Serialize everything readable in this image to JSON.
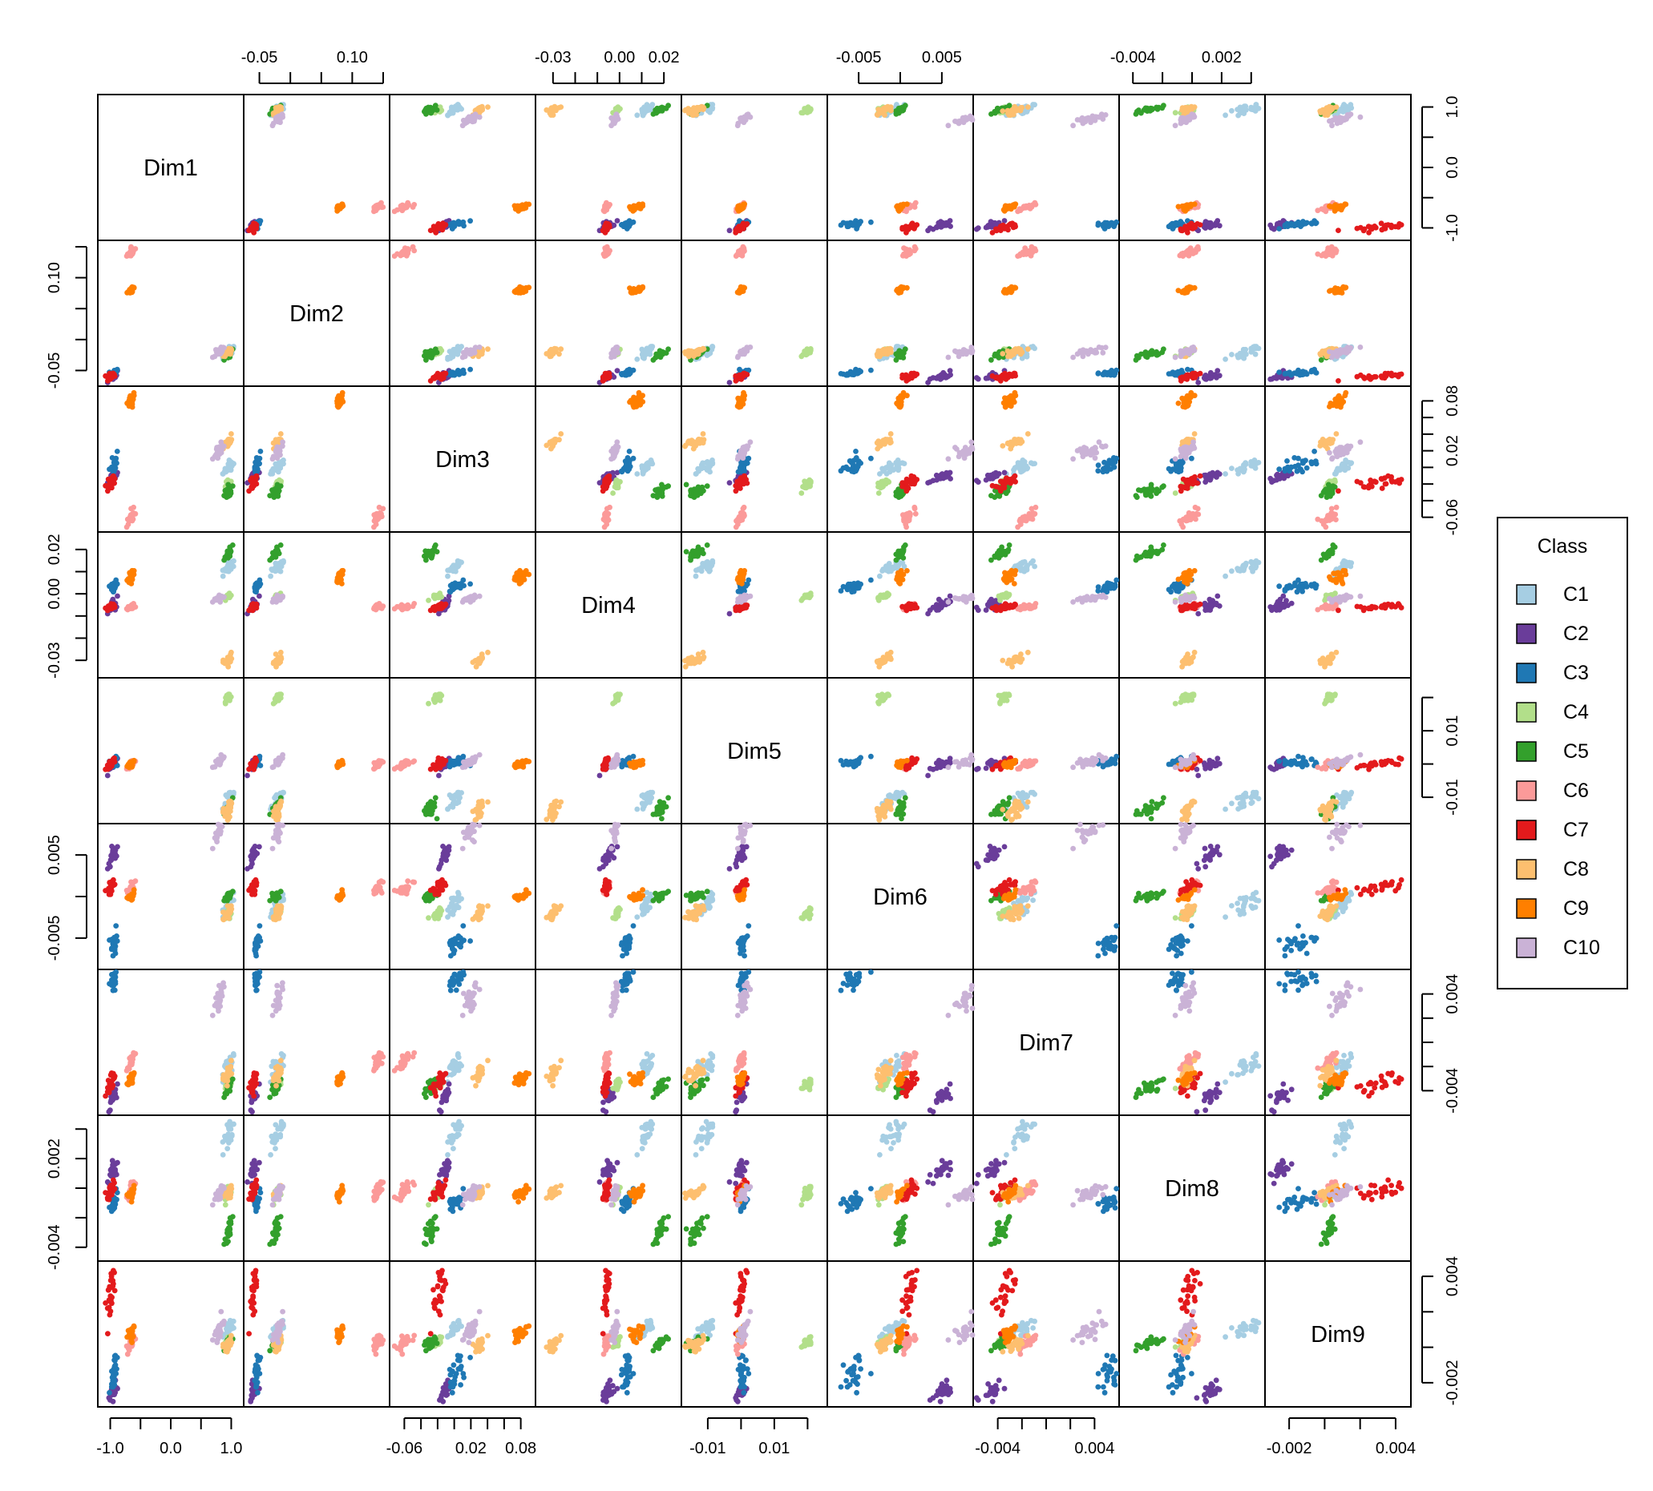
{
  "chart_data": {
    "type": "scatter",
    "subtype": "scatterplot-matrix",
    "title": "",
    "variables": [
      "Dim1",
      "Dim2",
      "Dim3",
      "Dim4",
      "Dim5",
      "Dim6",
      "Dim7",
      "Dim8",
      "Dim9"
    ],
    "axes": [
      {
        "name": "Dim1",
        "range": [
          -1.1,
          1.1
        ],
        "ticks": [
          -1.0,
          -0.5,
          0.0,
          0.5,
          1.0
        ],
        "tick_labels": [
          "-1.0",
          "0.0",
          "1.0"
        ],
        "label_side": "x-bottom, y-right"
      },
      {
        "name": "Dim2",
        "range": [
          -0.065,
          0.15
        ],
        "ticks": [
          -0.05,
          0.0,
          0.05,
          0.1,
          0.15
        ],
        "tick_labels": [
          "-0.05",
          "0.10"
        ],
        "label_side": "x-top, y-left"
      },
      {
        "name": "Dim3",
        "range": [
          -0.07,
          0.09
        ],
        "ticks": [
          -0.06,
          -0.04,
          -0.02,
          0.0,
          0.02,
          0.04,
          0.06,
          0.08
        ],
        "tick_labels": [
          "-0.06",
          "0.02",
          "0.08"
        ],
        "label_side": "x-bottom, y-right"
      },
      {
        "name": "Dim4",
        "range": [
          -0.035,
          0.025
        ],
        "ticks": [
          -0.03,
          -0.02,
          -0.01,
          0.0,
          0.01,
          0.02
        ],
        "tick_labels": [
          "-0.03",
          "0.00",
          "0.02"
        ],
        "label_side": "x-top, y-left"
      },
      {
        "name": "Dim5",
        "range": [
          -0.016,
          0.024
        ],
        "ticks": [
          -0.01,
          0.0,
          0.01,
          0.02
        ],
        "tick_labels": [
          "-0.01",
          "0.01"
        ],
        "label_side": "x-bottom, y-right"
      },
      {
        "name": "Dim6",
        "range": [
          -0.008,
          0.008
        ],
        "ticks": [
          -0.005,
          0.0,
          0.005
        ],
        "tick_labels": [
          "-0.005",
          "0.005"
        ],
        "label_side": "x-top, y-left"
      },
      {
        "name": "Dim7",
        "range": [
          -0.0055,
          0.0055
        ],
        "ticks": [
          -0.004,
          -0.002,
          0.0,
          0.002,
          0.004
        ],
        "tick_labels": [
          "-0.004",
          "0.004"
        ],
        "label_side": "x-bottom, y-right"
      },
      {
        "name": "Dim8",
        "range": [
          -0.0045,
          0.0045
        ],
        "ticks": [
          -0.004,
          -0.002,
          0.0,
          0.002,
          0.004
        ],
        "tick_labels": [
          "-0.004",
          "0.002"
        ],
        "label_side": "x-top, y-left"
      },
      {
        "name": "Dim9",
        "range": [
          -0.003,
          0.0045
        ],
        "ticks": [
          -0.002,
          0.0,
          0.002,
          0.004
        ],
        "tick_labels": [
          "-0.002",
          "0.004"
        ],
        "label_side": "x-bottom, y-right"
      }
    ],
    "x_axis_labels_bottom": [
      {
        "var": 0,
        "labels": [
          {
            "v": -1.0,
            "t": "-1.0"
          },
          {
            "v": 0.0,
            "t": "0.0"
          },
          {
            "v": 1.0,
            "t": "1.0"
          }
        ]
      },
      {
        "var": 2,
        "labels": [
          {
            "v": -0.06,
            "t": "-0.06"
          },
          {
            "v": 0.02,
            "t": "0.02"
          },
          {
            "v": 0.08,
            "t": "0.08"
          }
        ]
      },
      {
        "var": 4,
        "labels": [
          {
            "v": -0.01,
            "t": "-0.01"
          },
          {
            "v": 0.01,
            "t": "0.01"
          }
        ]
      },
      {
        "var": 6,
        "labels": [
          {
            "v": -0.004,
            "t": "-0.004"
          },
          {
            "v": 0.004,
            "t": "0.004"
          }
        ]
      },
      {
        "var": 8,
        "labels": [
          {
            "v": -0.002,
            "t": "-0.002"
          },
          {
            "v": 0.004,
            "t": "0.004"
          }
        ]
      }
    ],
    "x_axis_labels_top": [
      {
        "var": 1,
        "labels": [
          {
            "v": -0.05,
            "t": "-0.05"
          },
          {
            "v": 0.1,
            "t": "0.10"
          }
        ]
      },
      {
        "var": 3,
        "labels": [
          {
            "v": -0.03,
            "t": "-0.03"
          },
          {
            "v": 0.0,
            "t": "0.00"
          },
          {
            "v": 0.02,
            "t": "0.02"
          }
        ]
      },
      {
        "var": 5,
        "labels": [
          {
            "v": -0.005,
            "t": "-0.005"
          },
          {
            "v": 0.005,
            "t": "0.005"
          }
        ]
      },
      {
        "var": 7,
        "labels": [
          {
            "v": -0.004,
            "t": "-0.004"
          },
          {
            "v": 0.002,
            "t": "0.002"
          }
        ]
      }
    ],
    "y_axis_labels_left": [
      {
        "var": 1,
        "labels": [
          {
            "v": -0.05,
            "t": "-0.05"
          },
          {
            "v": 0.1,
            "t": "0.10"
          }
        ]
      },
      {
        "var": 3,
        "labels": [
          {
            "v": -0.03,
            "t": "-0.03"
          },
          {
            "v": 0.0,
            "t": "0.00"
          },
          {
            "v": 0.02,
            "t": "0.02"
          }
        ]
      },
      {
        "var": 5,
        "labels": [
          {
            "v": -0.005,
            "t": "-0.005"
          },
          {
            "v": 0.005,
            "t": "0.005"
          }
        ]
      },
      {
        "var": 7,
        "labels": [
          {
            "v": -0.004,
            "t": "-0.004"
          },
          {
            "v": 0.002,
            "t": "0.002"
          }
        ]
      }
    ],
    "y_axis_labels_right": [
      {
        "var": 0,
        "labels": [
          {
            "v": -1.0,
            "t": "-1.0"
          },
          {
            "v": 0.0,
            "t": "0.0"
          },
          {
            "v": 1.0,
            "t": "1.0"
          }
        ]
      },
      {
        "var": 2,
        "labels": [
          {
            "v": -0.06,
            "t": "-0.06"
          },
          {
            "v": 0.02,
            "t": "0.02"
          },
          {
            "v": 0.08,
            "t": "0.08"
          }
        ]
      },
      {
        "var": 4,
        "labels": [
          {
            "v": -0.01,
            "t": "-0.01"
          },
          {
            "v": 0.01,
            "t": "0.01"
          }
        ]
      },
      {
        "var": 6,
        "labels": [
          {
            "v": -0.004,
            "t": "-0.004"
          },
          {
            "v": 0.004,
            "t": "0.004"
          }
        ]
      },
      {
        "var": 8,
        "labels": [
          {
            "v": -0.002,
            "t": "-0.002"
          },
          {
            "v": 0.004,
            "t": "0.004"
          }
        ]
      }
    ],
    "legend": {
      "title": "Class",
      "position": "right",
      "entries": [
        {
          "name": "C1",
          "color": "#A6CEE3"
        },
        {
          "name": "C2",
          "color": "#6A3D9A"
        },
        {
          "name": "C3",
          "color": "#1F78B4"
        },
        {
          "name": "C4",
          "color": "#B2DF8A"
        },
        {
          "name": "C5",
          "color": "#33A02C"
        },
        {
          "name": "C6",
          "color": "#FB9A99"
        },
        {
          "name": "C7",
          "color": "#E31A1C"
        },
        {
          "name": "C8",
          "color": "#FDBF6F"
        },
        {
          "name": "C9",
          "color": "#FF7F00"
        },
        {
          "name": "C10",
          "color": "#CAB2D6"
        }
      ]
    },
    "class_centroids": {
      "C1": [
        0.95,
        -0.02,
        0.0,
        0.012,
        -0.011,
        -0.001,
        -0.002,
        0.0035,
        0.001
      ],
      "C2": [
        -0.95,
        -0.06,
        -0.01,
        -0.005,
        0.0,
        0.005,
        -0.0045,
        0.0013,
        -0.0025
      ],
      "C3": [
        -0.95,
        -0.055,
        0.0,
        0.003,
        0.0,
        -0.006,
        0.005,
        -0.001,
        -0.0015
      ],
      "C4": [
        0.95,
        -0.02,
        -0.02,
        -0.001,
        0.02,
        -0.002,
        -0.0035,
        -0.0003,
        0.0003
      ],
      "C5": [
        0.95,
        -0.025,
        -0.03,
        0.018,
        -0.014,
        0.0,
        -0.0038,
        -0.003,
        0.0002
      ],
      "C6": [
        -0.65,
        0.14,
        -0.06,
        -0.006,
        0.0,
        0.001,
        -0.0015,
        -0.0002,
        0.0003
      ],
      "C7": [
        -1.0,
        -0.06,
        -0.02,
        -0.006,
        0.0,
        0.001,
        -0.0035,
        -0.0002,
        0.003
      ],
      "C8": [
        0.95,
        -0.02,
        0.03,
        -0.03,
        -0.014,
        -0.002,
        -0.0025,
        -0.0003,
        0.0002
      ],
      "C9": [
        -0.65,
        0.08,
        0.08,
        0.008,
        0.0,
        0.0,
        -0.003,
        -0.0003,
        0.0008
      ],
      "C10": [
        0.8,
        -0.02,
        0.02,
        -0.002,
        0.001,
        0.008,
        0.0035,
        -0.0003,
        0.001
      ]
    },
    "class_spreads": {
      "C1": [
        0.05,
        0.006,
        0.006,
        0.002,
        0.002,
        0.0008,
        0.0006,
        0.0008,
        0.0003
      ],
      "C2": [
        0.05,
        0.004,
        0.004,
        0.002,
        0.001,
        0.0008,
        0.0006,
        0.0004,
        0.0004
      ],
      "C3": [
        0.04,
        0.004,
        0.008,
        0.002,
        0.001,
        0.0014,
        0.0008,
        0.0004,
        0.0008
      ],
      "C4": [
        0.03,
        0.004,
        0.004,
        0.001,
        0.001,
        0.0004,
        0.0003,
        0.0003,
        0.0002
      ],
      "C5": [
        0.04,
        0.004,
        0.006,
        0.002,
        0.002,
        0.0004,
        0.0004,
        0.0006,
        0.0002
      ],
      "C6": [
        0.04,
        0.006,
        0.006,
        0.001,
        0.001,
        0.0005,
        0.0005,
        0.0004,
        0.0003
      ],
      "C7": [
        0.05,
        0.004,
        0.006,
        0.001,
        0.001,
        0.0006,
        0.0006,
        0.0004,
        0.001
      ],
      "C8": [
        0.05,
        0.004,
        0.004,
        0.002,
        0.002,
        0.0006,
        0.0005,
        0.0003,
        0.0003
      ],
      "C9": [
        0.03,
        0.003,
        0.006,
        0.002,
        0.001,
        0.0003,
        0.0004,
        0.0003,
        0.0003
      ],
      "C10": [
        0.05,
        0.004,
        0.006,
        0.001,
        0.001,
        0.0008,
        0.0008,
        0.0004,
        0.0004
      ]
    },
    "points_per_class": 26,
    "grid": false
  }
}
